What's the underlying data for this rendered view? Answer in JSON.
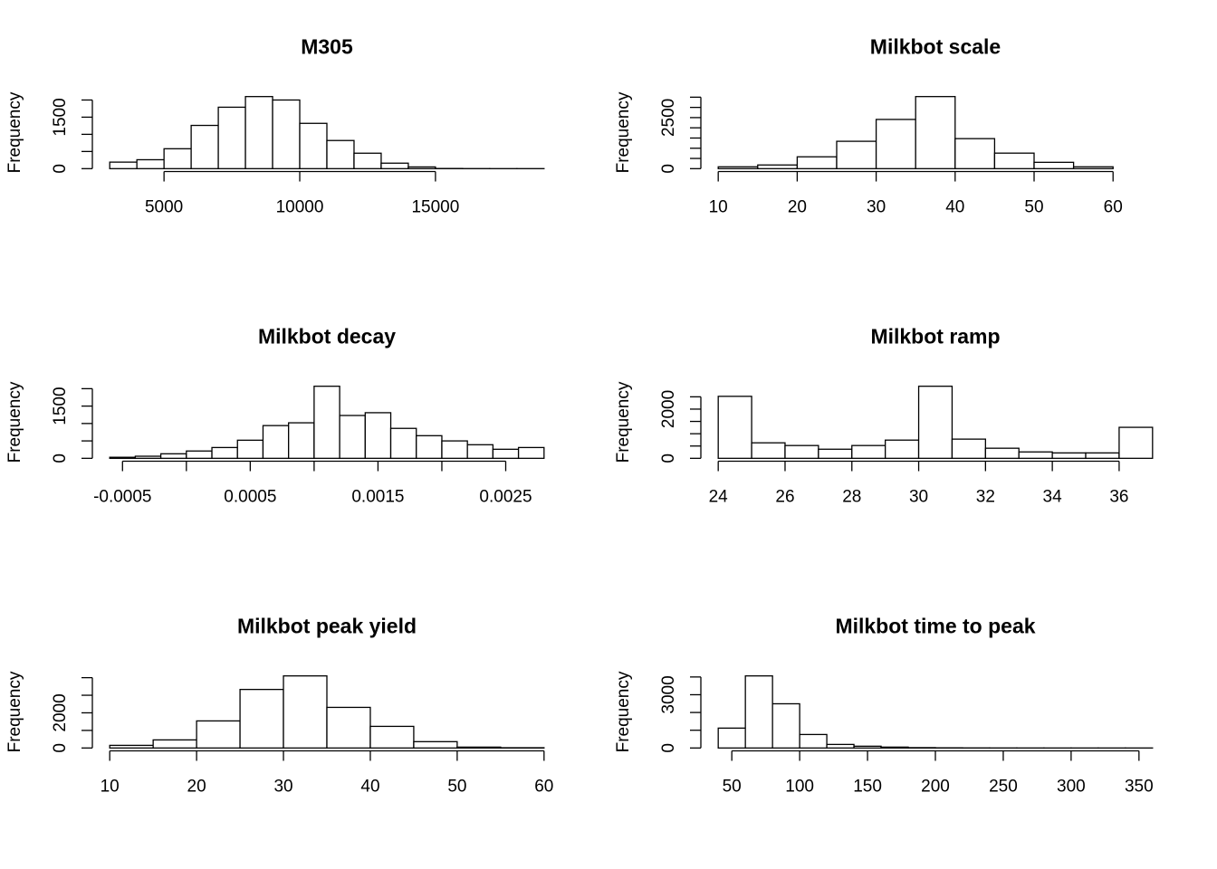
{
  "chart_data": [
    {
      "type": "histogram",
      "title": "M305",
      "ylabel": "Frequency",
      "color": "#ffffff",
      "bins": [
        3000,
        4000,
        5000,
        6000,
        7000,
        8000,
        9000,
        10000,
        11000,
        12000,
        13000,
        14000,
        15000,
        16000,
        17000,
        18000,
        19000
      ],
      "values": [
        190,
        260,
        580,
        1260,
        1790,
        2100,
        2000,
        1320,
        820,
        450,
        160,
        50,
        5,
        2,
        1,
        1
      ],
      "xlim": [
        3000,
        19000
      ],
      "xticks": [
        5000,
        10000,
        15000
      ],
      "ylim": [
        0,
        2100
      ],
      "yticks": [
        0,
        {
          "value": 500,
          "label": null
        },
        {
          "value": 1000,
          "label": null
        },
        1500,
        {
          "value": 2000,
          "label": null
        }
      ]
    },
    {
      "type": "histogram",
      "title": "Milkbot scale",
      "ylabel": "Frequency",
      "color": "#ffffff",
      "bins": [
        10,
        15,
        20,
        25,
        30,
        35,
        40,
        45,
        50,
        55,
        60,
        65
      ],
      "values": [
        90,
        180,
        580,
        1340,
        2410,
        3530,
        1470,
        760,
        310,
        90,
        0
      ],
      "xlim": [
        10,
        65
      ],
      "xticks": [
        10,
        20,
        30,
        40,
        50,
        60
      ],
      "ylim": [
        0,
        3530
      ],
      "yticks": [
        0,
        {
          "value": 500,
          "label": null
        },
        {
          "value": 1000,
          "label": null
        },
        {
          "value": 1500,
          "label": null
        },
        {
          "value": 2000,
          "label": null
        },
        2500,
        {
          "value": 3000,
          "label": null
        },
        {
          "value": 3500,
          "label": null
        }
      ]
    },
    {
      "type": "histogram",
      "title": "Milkbot decay",
      "ylabel": "Frequency",
      "color": "#ffffff",
      "bins": [
        -0.0006,
        -0.0004,
        -0.0002,
        0,
        0.0002,
        0.0004,
        0.0006,
        0.0008,
        0.001,
        0.0012,
        0.0014,
        0.0016,
        0.0018,
        0.002,
        0.0022,
        0.0024,
        0.0026,
        0.0028
      ],
      "values": [
        30,
        60,
        130,
        210,
        310,
        520,
        940,
        1020,
        2070,
        1230,
        1310,
        860,
        650,
        500,
        390,
        260,
        310
      ],
      "xlim": [
        -0.0006,
        0.0028
      ],
      "xticks": [
        -0.0005,
        {
          "value": 0,
          "label": null
        },
        0.0005,
        {
          "value": 0.001,
          "label": null
        },
        0.0015,
        {
          "value": 0.002,
          "label": null
        },
        0.0025
      ],
      "ylim": [
        0,
        2070
      ],
      "yticks": [
        0,
        {
          "value": 500,
          "label": null
        },
        {
          "value": 1000,
          "label": null
        },
        1500,
        {
          "value": 2000,
          "label": null
        }
      ]
    },
    {
      "type": "histogram",
      "title": "Milkbot ramp",
      "ylabel": "Frequency",
      "color": "#ffffff",
      "bins": [
        24,
        25,
        26,
        27,
        28,
        29,
        30,
        31,
        32,
        33,
        34,
        35,
        36,
        37
      ],
      "values": [
        2520,
        630,
        520,
        370,
        520,
        740,
        2930,
        780,
        410,
        260,
        220,
        220,
        1260
      ],
      "xlim": [
        24,
        37
      ],
      "xticks": [
        24,
        26,
        28,
        30,
        32,
        34,
        36
      ],
      "ylim": [
        0,
        2930
      ],
      "yticks": [
        0,
        {
          "value": 500,
          "label": null
        },
        {
          "value": 1000,
          "label": null
        },
        {
          "value": 1500,
          "label": null
        },
        2000,
        {
          "value": 2500,
          "label": null
        }
      ]
    },
    {
      "type": "histogram",
      "title": "Milkbot peak yield",
      "ylabel": "Frequency",
      "color": "#ffffff",
      "bins": [
        10,
        15,
        20,
        25,
        30,
        35,
        40,
        45,
        50,
        55,
        60
      ],
      "values": [
        150,
        460,
        1540,
        3330,
        4100,
        2310,
        1230,
        360,
        50,
        15
      ],
      "xlim": [
        10,
        60
      ],
      "xticks": [
        10,
        20,
        30,
        40,
        50,
        60
      ],
      "ylim": [
        0,
        4100
      ],
      "yticks": [
        0,
        {
          "value": 1000,
          "label": null
        },
        2000,
        {
          "value": 3000,
          "label": null
        },
        {
          "value": 4000,
          "label": null
        }
      ]
    },
    {
      "type": "histogram",
      "title": "Milkbot time to peak",
      "ylabel": "Frequency",
      "color": "#ffffff",
      "bins": [
        40,
        60,
        80,
        100,
        120,
        140,
        160,
        180,
        200,
        220,
        240,
        260,
        280,
        300,
        320,
        340,
        360
      ],
      "values": [
        1120,
        4060,
        2490,
        760,
        200,
        100,
        50,
        20,
        10,
        5,
        3,
        2,
        1,
        1,
        1,
        1
      ],
      "xlim": [
        40,
        360
      ],
      "xticks": [
        50,
        100,
        150,
        200,
        250,
        300,
        350
      ],
      "ylim": [
        0,
        4060
      ],
      "yticks": [
        0,
        {
          "value": 1000,
          "label": null
        },
        {
          "value": 2000,
          "label": null
        },
        3000,
        {
          "value": 4000,
          "label": null
        }
      ]
    }
  ]
}
